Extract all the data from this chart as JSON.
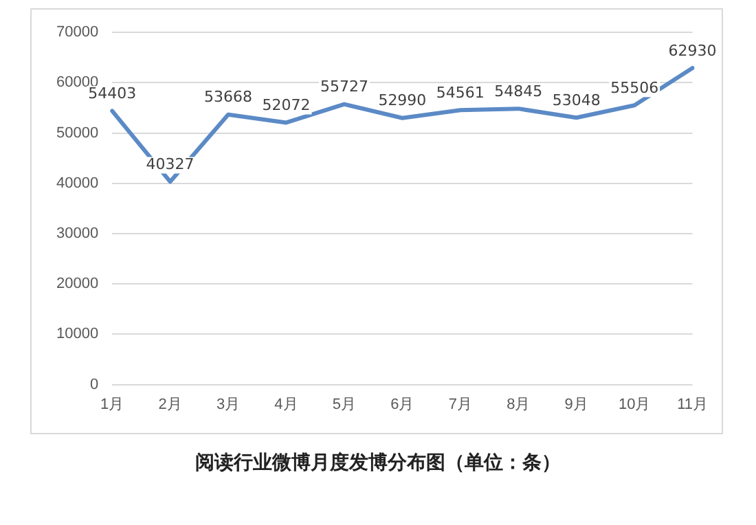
{
  "chart_data": {
    "type": "line",
    "title": "阅读行业微博月度发博分布图（单位：条）",
    "categories": [
      "1月",
      "2月",
      "3月",
      "4月",
      "5月",
      "6月",
      "7月",
      "8月",
      "9月",
      "10月",
      "11月"
    ],
    "series": [
      {
        "color": "#5b8ac6",
        "values": [
          54403,
          40327,
          53668,
          52072,
          55727,
          52990,
          54561,
          54845,
          53048,
          55506,
          62930
        ]
      }
    ],
    "ylim": [
      0,
      70000
    ],
    "yticks": [
      0,
      10000,
      20000,
      30000,
      40000,
      50000,
      60000,
      70000
    ],
    "grid": "y",
    "legend": false,
    "marker": "none",
    "line_style": "solid",
    "data_labels": true
  }
}
